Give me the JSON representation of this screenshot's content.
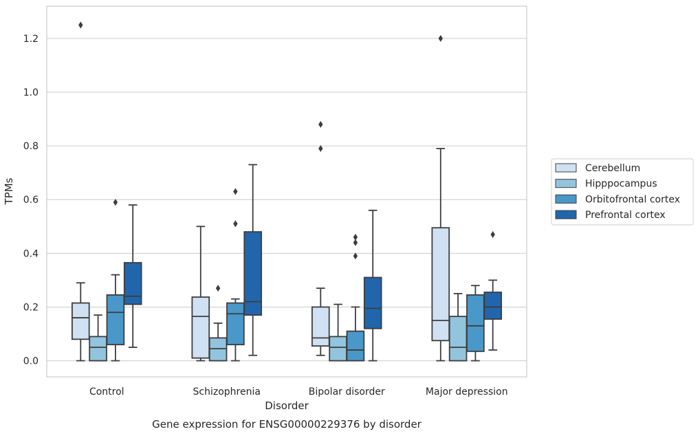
{
  "chart_data": {
    "type": "box",
    "title": "",
    "caption": "Gene expression for ENSG00000229376 by disorder",
    "xlabel": "Disorder",
    "ylabel": "TPMs",
    "ylim": [
      -0.06,
      1.32
    ],
    "yticks": [
      0.0,
      0.2,
      0.4,
      0.6,
      0.8,
      1.0,
      1.2
    ],
    "ytick_labels": [
      "0.0",
      "0.2",
      "0.4",
      "0.6",
      "0.8",
      "1.0",
      "1.2"
    ],
    "grid": "horizontal",
    "legend_position": "right-outside",
    "categories": [
      "Control",
      "Schizophrenia",
      "Bipolar disorder",
      "Major depression"
    ],
    "series": [
      {
        "name": "Cerebellum",
        "color": "#cfe1f2",
        "boxes": [
          {
            "min": 0.0,
            "q1": 0.08,
            "median": 0.16,
            "q3": 0.215,
            "max": 0.29,
            "outliers": [
              1.25
            ]
          },
          {
            "min": 0.0,
            "q1": 0.01,
            "median": 0.165,
            "q3": 0.237,
            "max": 0.5,
            "outliers": []
          },
          {
            "min": 0.02,
            "q1": 0.055,
            "median": 0.085,
            "q3": 0.2,
            "max": 0.27,
            "outliers": [
              0.88,
              0.79
            ]
          },
          {
            "min": 0.0,
            "q1": 0.075,
            "median": 0.15,
            "q3": 0.495,
            "max": 0.79,
            "outliers": [
              1.2
            ]
          }
        ]
      },
      {
        "name": "Hipppocampus",
        "color": "#93c4de",
        "boxes": [
          {
            "min": 0.0,
            "q1": 0.0,
            "median": 0.05,
            "q3": 0.09,
            "max": 0.17,
            "outliers": []
          },
          {
            "min": 0.0,
            "q1": 0.0,
            "median": 0.045,
            "q3": 0.085,
            "max": 0.14,
            "outliers": [
              0.27
            ]
          },
          {
            "min": 0.0,
            "q1": 0.0,
            "median": 0.05,
            "q3": 0.09,
            "max": 0.21,
            "outliers": []
          },
          {
            "min": 0.0,
            "q1": 0.0,
            "median": 0.05,
            "q3": 0.165,
            "max": 0.25,
            "outliers": []
          }
        ]
      },
      {
        "name": "Orbitofrontal cortex",
        "color": "#4a98c9",
        "boxes": [
          {
            "min": 0.0,
            "q1": 0.06,
            "median": 0.18,
            "q3": 0.245,
            "max": 0.32,
            "outliers": [
              0.59
            ]
          },
          {
            "min": 0.0,
            "q1": 0.06,
            "median": 0.175,
            "q3": 0.215,
            "max": 0.23,
            "outliers": [
              0.63,
              0.51
            ]
          },
          {
            "min": 0.0,
            "q1": 0.0,
            "median": 0.04,
            "q3": 0.11,
            "max": 0.2,
            "outliers": [
              0.46,
              0.44,
              0.39
            ]
          },
          {
            "min": 0.0,
            "q1": 0.035,
            "median": 0.13,
            "q3": 0.245,
            "max": 0.28,
            "outliers": []
          }
        ]
      },
      {
        "name": "Prefrontal cortex",
        "color": "#2166ac",
        "boxes": [
          {
            "min": 0.05,
            "q1": 0.21,
            "median": 0.24,
            "q3": 0.365,
            "max": 0.58,
            "outliers": []
          },
          {
            "min": 0.02,
            "q1": 0.17,
            "median": 0.22,
            "q3": 0.48,
            "max": 0.73,
            "outliers": []
          },
          {
            "min": 0.0,
            "q1": 0.12,
            "median": 0.195,
            "q3": 0.31,
            "max": 0.56,
            "outliers": []
          },
          {
            "min": 0.04,
            "q1": 0.155,
            "median": 0.2,
            "q3": 0.255,
            "max": 0.3,
            "outliers": [
              0.47
            ]
          }
        ]
      }
    ]
  }
}
